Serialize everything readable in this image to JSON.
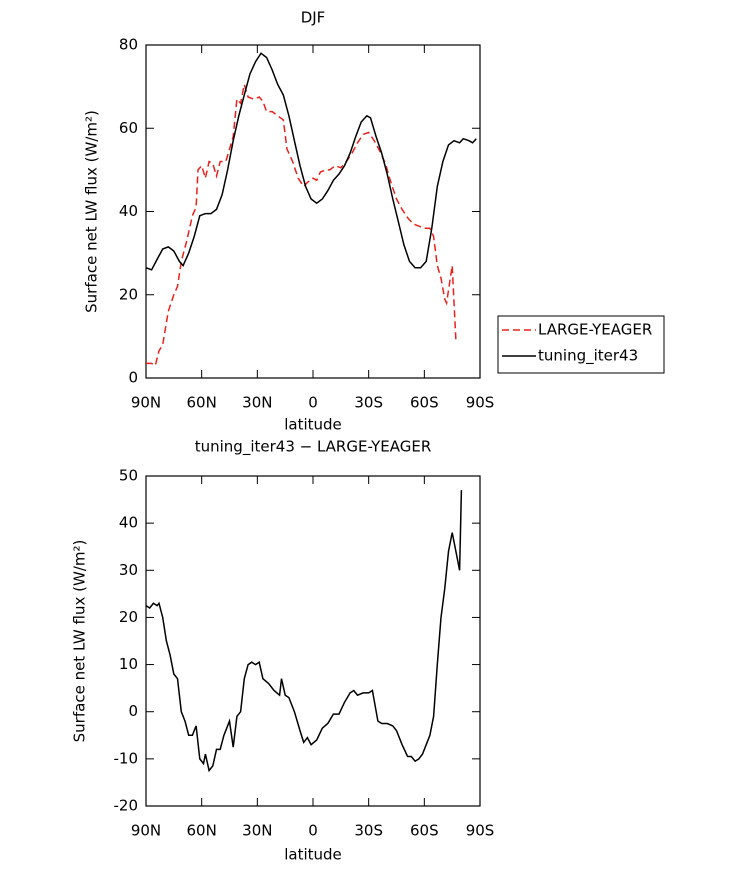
{
  "chart_data": [
    {
      "type": "line",
      "title": "DJF",
      "xlabel": "latitude",
      "ylabel": "Surface net LW flux (W/m²)",
      "xlim": [
        90,
        -90
      ],
      "ylim": [
        0,
        80
      ],
      "xticks": [
        {
          "value": 90,
          "label": "90N"
        },
        {
          "value": 60,
          "label": "60N"
        },
        {
          "value": 30,
          "label": "30N"
        },
        0,
        {
          "value": -30,
          "label": "30S"
        },
        {
          "value": -60,
          "label": "60S"
        },
        {
          "value": -90,
          "label": "90S"
        }
      ],
      "yticks": [
        0,
        20,
        40,
        60,
        80
      ],
      "legend": "right",
      "series": [
        {
          "name": "LARGE-YEAGER",
          "color": "#e8211d",
          "linestyle": "dashed",
          "x": [
            90,
            87,
            85,
            83,
            81,
            78,
            75,
            73,
            71,
            68,
            65,
            63,
            62,
            60,
            58,
            56,
            54,
            52,
            50,
            47,
            45,
            43,
            41,
            39,
            37,
            35,
            32,
            29,
            27,
            25,
            22,
            19,
            16,
            14,
            11,
            8,
            5,
            3,
            0,
            -2,
            -4,
            -7,
            -9,
            -12,
            -15,
            -18,
            -21,
            -24,
            -27,
            -30,
            -33,
            -36,
            -39,
            -42,
            -45,
            -48,
            -51,
            -54,
            -57,
            -60,
            -63,
            -65,
            -67,
            -69,
            -71,
            -72,
            -74,
            -75,
            -77
          ],
          "values": [
            3.5,
            3.5,
            3,
            6.5,
            8,
            16,
            20,
            22,
            28,
            33,
            39,
            41,
            50,
            51,
            48,
            52,
            51.5,
            48.5,
            52,
            52,
            55,
            58,
            67,
            66,
            70.5,
            67.5,
            67,
            67.5,
            66.5,
            64,
            64,
            63,
            62,
            55,
            52,
            48,
            46,
            47,
            48,
            47.5,
            49.5,
            50,
            50,
            51,
            50.5,
            52,
            54,
            56.5,
            58.5,
            59,
            57,
            54.5,
            51.5,
            47,
            43,
            40.5,
            38.5,
            37,
            36.5,
            36,
            36,
            34,
            27,
            24,
            19,
            18,
            24,
            27,
            9
          ]
        },
        {
          "name": "tuning_iter43",
          "color": "#000000",
          "linestyle": "solid",
          "x": [
            90,
            87,
            84,
            81,
            78,
            75,
            72,
            70,
            67,
            64,
            61,
            58,
            55,
            52,
            49,
            46,
            43,
            40,
            37,
            34,
            31,
            28,
            25,
            22,
            19,
            16,
            13,
            10,
            7,
            4,
            1,
            -2,
            -5,
            -8,
            -11,
            -14,
            -17,
            -20,
            -23,
            -26,
            -29,
            -31,
            -34,
            -37,
            -40,
            -43,
            -46,
            -49,
            -52,
            -55,
            -58,
            -61,
            -64,
            -67,
            -70,
            -73,
            -76,
            -79,
            -81,
            -84,
            -86,
            -88
          ],
          "values": [
            26.5,
            26,
            28.5,
            31,
            31.5,
            30.5,
            28,
            27,
            30,
            34,
            39,
            39.5,
            39.5,
            40.5,
            44,
            50,
            57,
            63,
            68,
            73,
            76,
            78,
            77,
            74,
            70.5,
            68,
            63,
            57,
            51,
            46,
            43,
            42,
            43,
            45,
            47.5,
            49,
            51,
            54,
            58,
            61.5,
            63,
            62.5,
            58,
            54,
            49,
            43,
            37.5,
            32,
            28,
            26.5,
            26.5,
            28,
            36,
            46,
            52,
            56,
            57,
            56.5,
            57.5,
            57,
            56.5,
            57.5
          ]
        }
      ]
    },
    {
      "type": "line",
      "title": "tuning_iter43 − LARGE-YEAGER",
      "xlabel": "latitude",
      "ylabel": "Surface net LW flux (W/m²)",
      "xlim": [
        90,
        -90
      ],
      "ylim": [
        -20,
        50
      ],
      "xticks": [
        {
          "value": 90,
          "label": "90N"
        },
        {
          "value": 60,
          "label": "60N"
        },
        {
          "value": 30,
          "label": "30N"
        },
        0,
        {
          "value": -30,
          "label": "30S"
        },
        {
          "value": -60,
          "label": "60S"
        },
        {
          "value": -90,
          "label": "90S"
        }
      ],
      "yticks": [
        -20,
        -10,
        0,
        10,
        20,
        30,
        40,
        50
      ],
      "series": [
        {
          "color": "#000000",
          "linestyle": "solid",
          "x": [
            90,
            88,
            86,
            84,
            83,
            81,
            79,
            77,
            75,
            73,
            71,
            69,
            67,
            65,
            63,
            61,
            59,
            58,
            56,
            54,
            52,
            50,
            48,
            45,
            43,
            41,
            39,
            37,
            35,
            33,
            31,
            29,
            27,
            24,
            21,
            18,
            17,
            15,
            13,
            10,
            7,
            5,
            3,
            1,
            -2,
            -5,
            -8,
            -11,
            -14,
            -17,
            -20,
            -22,
            -24,
            -27,
            -30,
            -32,
            -35,
            -37,
            -40,
            -43,
            -45,
            -48,
            -51,
            -53,
            -55,
            -57,
            -59,
            -61,
            -63,
            -65,
            -67,
            -69,
            -71,
            -73,
            -75,
            -77,
            -79,
            -80
          ],
          "values": [
            22.5,
            22,
            23,
            22.5,
            23,
            20,
            15,
            12,
            8,
            7,
            0,
            -2,
            -5,
            -5,
            -3,
            -10,
            -11,
            -9,
            -12.5,
            -11.5,
            -8,
            -8,
            -5,
            -2,
            -7.5,
            -1,
            0,
            7,
            10,
            10.5,
            10,
            10.5,
            7,
            6,
            4.5,
            3.5,
            7,
            3.5,
            3,
            0,
            -4,
            -6.5,
            -5.5,
            -7,
            -6,
            -3.5,
            -2.5,
            -0.5,
            -0.5,
            2,
            4,
            4.5,
            3.5,
            4,
            4,
            4.5,
            -2,
            -2.5,
            -2.5,
            -3,
            -4,
            -7,
            -9.5,
            -9.5,
            -10.5,
            -10,
            -9,
            -7,
            -5,
            -1,
            10,
            20,
            26,
            34,
            38,
            34,
            30,
            47
          ]
        }
      ]
    }
  ]
}
